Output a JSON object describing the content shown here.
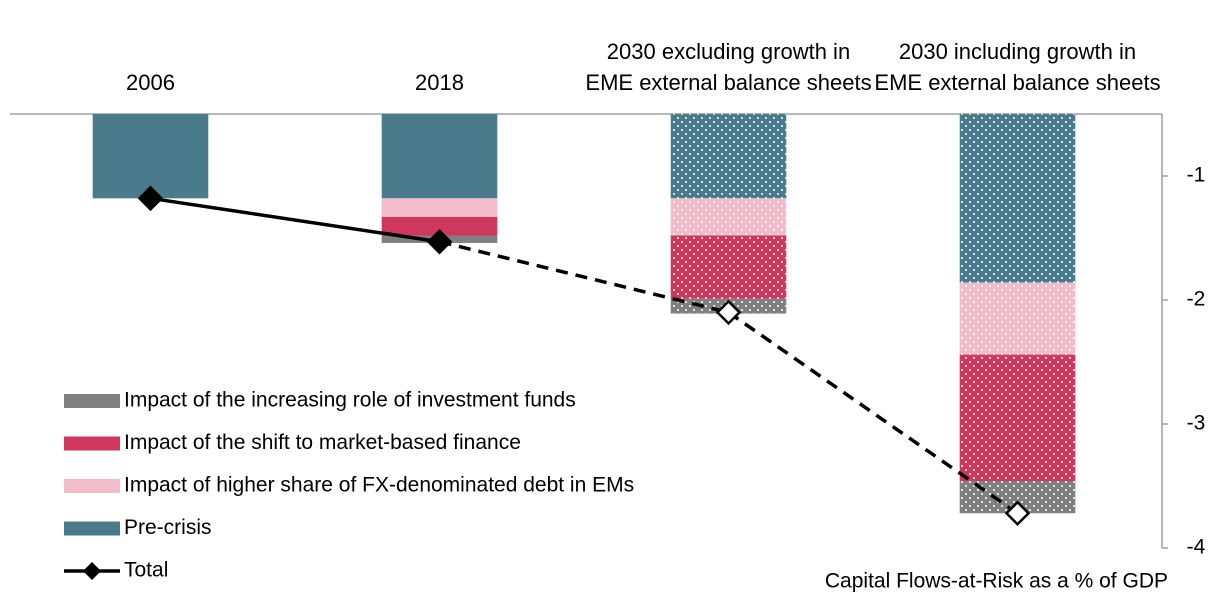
{
  "chart_data": {
    "type": "bar",
    "categories": [
      "2006",
      "2018",
      "2030 excluding growth in EME external balance sheets",
      "2030 including growth in EME external balance sheets"
    ],
    "series": [
      {
        "name": "Pre-crisis",
        "color": "#4a7b8c",
        "values": [
          -1.18,
          -1.18,
          -1.18,
          -1.86
        ]
      },
      {
        "name": "Impact of higher share of FX-denominated debt in EMs",
        "color": "#f2bccb",
        "values": [
          0,
          -0.15,
          -0.3,
          -0.58
        ]
      },
      {
        "name": "Impact of the shift to market-based finance",
        "color": "#d0375c",
        "values": [
          0,
          -0.15,
          -0.51,
          -1.02
        ]
      },
      {
        "name": "Impact of the increasing role of investment funds",
        "color": "#808080",
        "values": [
          0,
          -0.06,
          -0.12,
          -0.26
        ]
      }
    ],
    "total": {
      "name": "Total",
      "color": "#000000",
      "values": [
        -1.18,
        -1.53,
        -2.1,
        -3.72
      ]
    },
    "hatched": [
      false,
      false,
      true,
      true
    ],
    "axis_label": "Capital Flows-at-Risk as a % of GDP",
    "ylim": [
      -4,
      -0.5
    ],
    "yticks": [
      -1,
      -2,
      -3,
      -4
    ],
    "y_axis_side": "right",
    "legend": "lower left"
  }
}
